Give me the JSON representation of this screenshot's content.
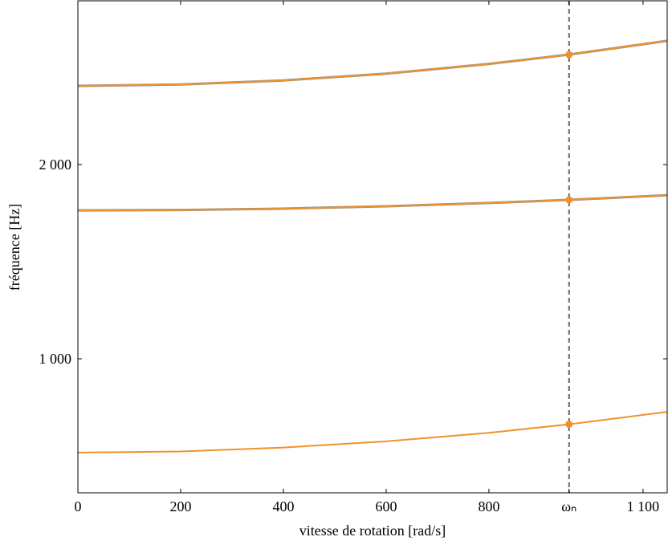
{
  "chart_data": {
    "type": "line",
    "x_label": "vitesse de rotation [rad/s]",
    "y_label": "fréquence [Hz]",
    "x": [
      0,
      200,
      400,
      600,
      800,
      956,
      1147
    ],
    "series": [
      {
        "color": "#8c8c8c",
        "values": [
          1764,
          1766,
          1773,
          1785,
          1802,
          1818,
          1842
        ]
      },
      {
        "color": "#8c8c8c",
        "values": [
          2405,
          2412,
          2433,
          2468,
          2518,
          2566,
          2637
        ]
      },
      {
        "color": "#f0922c",
        "values": [
          517,
          523,
          543,
          575,
          619,
          663,
          727
        ]
      },
      {
        "color": "#f0922c",
        "values": [
          1764,
          1766,
          1773,
          1785,
          1802,
          1818,
          1842
        ]
      },
      {
        "color": "#f0922c",
        "values": [
          2405,
          2412,
          2433,
          2468,
          2518,
          2566,
          2637
        ]
      }
    ],
    "points": {
      "color": "#f0922c",
      "x": [
        956,
        956,
        956
      ],
      "values": [
        663,
        1818,
        2566
      ]
    },
    "vline": {
      "value": 956,
      "color": "#666666"
    },
    "xlim": [
      0,
      1147
    ],
    "ylim": [
      310,
      2843
    ],
    "xticks": [
      0,
      200,
      400,
      600,
      800,
      {
        "value": 956,
        "label": "ωₙ"
      },
      {
        "value": 1100,
        "label": "1 100"
      }
    ],
    "yticks": [
      {
        "value": 1000,
        "label": "1 000"
      },
      {
        "value": 2000,
        "label": "2 000"
      }
    ],
    "grid": false
  }
}
